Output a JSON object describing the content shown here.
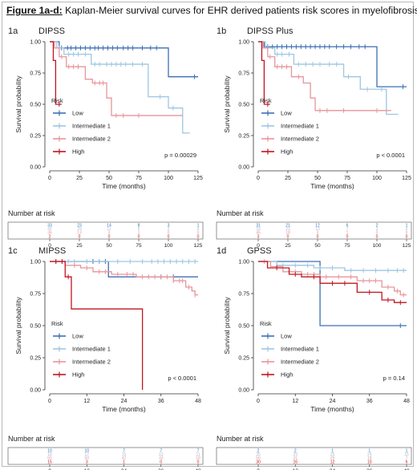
{
  "figure": {
    "label": "Figure 1a-d:",
    "title": "Kaplan-Meier survival curves for EHR derived patients risk scores in myelofibrosis"
  },
  "colors": {
    "low": "#3d6fb4",
    "int1": "#9ec6e2",
    "int2": "#e8959b",
    "high": "#c0161f",
    "ticks": "#444444"
  },
  "chart_data": [
    {
      "type": "line",
      "step": true,
      "panel_id": "1a",
      "title": "DIPSS",
      "xlabel": "Time (months)",
      "ylabel": "Survival probability",
      "xlim": [
        0,
        125
      ],
      "ylim": [
        0,
        1
      ],
      "xticks": [
        0,
        25,
        50,
        75,
        100,
        125
      ],
      "yticks": [
        0,
        0.25,
        0.5,
        0.75,
        1.0
      ],
      "ytick_labels": [
        "0.00",
        "0.25",
        "0.50",
        "0.75",
        "1.00"
      ],
      "legend_title": "Risk",
      "pvalue": "p = 0.00029",
      "risk_table_title": "Number at risk",
      "series": [
        {
          "name": "Low",
          "key": "low",
          "steps": [
            [
              0,
              1.0
            ],
            [
              8,
              0.95
            ],
            [
              100,
              0.72
            ],
            [
              125,
              0.72
            ]
          ],
          "censor": [
            10,
            15,
            18,
            22,
            26,
            30,
            34,
            38,
            41,
            45,
            49,
            53,
            57,
            62,
            66,
            70,
            78,
            85,
            90,
            122
          ]
        },
        {
          "name": "Intermediate 1",
          "key": "int1",
          "steps": [
            [
              0,
              1.0
            ],
            [
              6,
              0.95
            ],
            [
              12,
              0.9
            ],
            [
              35,
              0.82
            ],
            [
              83,
              0.56
            ],
            [
              100,
              0.47
            ],
            [
              112,
              0.27
            ],
            [
              118,
              0.27
            ]
          ],
          "censor": [
            8,
            16,
            20,
            24,
            30,
            38,
            42,
            48,
            52,
            56,
            60,
            64,
            70,
            78,
            93,
            104
          ]
        },
        {
          "name": "Intermediate 2",
          "key": "int2",
          "steps": [
            [
              0,
              1.0
            ],
            [
              4,
              0.95
            ],
            [
              8,
              0.88
            ],
            [
              14,
              0.8
            ],
            [
              30,
              0.7
            ],
            [
              36,
              0.67
            ],
            [
              48,
              0.55
            ],
            [
              52,
              0.41
            ],
            [
              112,
              0.41
            ]
          ],
          "censor": [
            10,
            16,
            20,
            24,
            38,
            42,
            45,
            56,
            62,
            75
          ]
        },
        {
          "name": "High",
          "key": "high",
          "steps": [
            [
              0,
              1.0
            ],
            [
              3,
              0.85
            ],
            [
              5,
              0.5
            ],
            [
              10,
              0.5
            ]
          ],
          "censor": [
            8
          ]
        }
      ],
      "risk_table": {
        "times": [
          0,
          25,
          50,
          75,
          100,
          125
        ],
        "rows": [
          {
            "key": "low",
            "values": [
              "33",
              "23",
              "14",
              "8",
              "3",
              "1"
            ]
          },
          {
            "key": "int1",
            "values": [
              "42",
              "29",
              "11",
              "6",
              "2",
              "0"
            ]
          },
          {
            "key": "int2",
            "values": [
              "36",
              "13",
              "3",
              "1",
              "0",
              "0"
            ]
          },
          {
            "key": "high",
            "values": [
              "2",
              "0",
              "0",
              "0",
              "0",
              "0"
            ]
          }
        ]
      }
    },
    {
      "type": "line",
      "step": true,
      "panel_id": "1b",
      "title": "DIPSS Plus",
      "xlabel": "Time (months)",
      "ylabel": "Survival probability",
      "xlim": [
        0,
        125
      ],
      "ylim": [
        0,
        1
      ],
      "xticks": [
        0,
        25,
        50,
        75,
        100,
        125
      ],
      "yticks": [
        0,
        0.25,
        0.5,
        0.75,
        1.0
      ],
      "ytick_labels": [
        "0.00",
        "0.25",
        "0.50",
        "0.75",
        "1.00"
      ],
      "legend_title": "Risk",
      "pvalue": "p < 0.0001",
      "risk_table_title": "Number at risk",
      "series": [
        {
          "name": "Low",
          "key": "low",
          "steps": [
            [
              0,
              1.0
            ],
            [
              5,
              0.96
            ],
            [
              100,
              0.64
            ],
            [
              125,
              0.64
            ]
          ],
          "censor": [
            8,
            12,
            16,
            20,
            24,
            28,
            32,
            36,
            40,
            44,
            48,
            52,
            56,
            60,
            66,
            72,
            78,
            85,
            90,
            122
          ]
        },
        {
          "name": "Intermediate 1",
          "key": "int1",
          "steps": [
            [
              0,
              1.0
            ],
            [
              6,
              0.95
            ],
            [
              14,
              0.9
            ],
            [
              30,
              0.82
            ],
            [
              72,
              0.72
            ],
            [
              86,
              0.62
            ],
            [
              108,
              0.42
            ],
            [
              118,
              0.42
            ]
          ],
          "censor": [
            8,
            16,
            20,
            26,
            34,
            40,
            46,
            52,
            60,
            66,
            76,
            92,
            104
          ]
        },
        {
          "name": "Intermediate 2",
          "key": "int2",
          "steps": [
            [
              0,
              1.0
            ],
            [
              4,
              0.95
            ],
            [
              8,
              0.88
            ],
            [
              14,
              0.8
            ],
            [
              28,
              0.72
            ],
            [
              38,
              0.67
            ],
            [
              44,
              0.55
            ],
            [
              48,
              0.45
            ],
            [
              112,
              0.45
            ]
          ],
          "censor": [
            10,
            16,
            20,
            24,
            34,
            52,
            58,
            72,
            100
          ]
        },
        {
          "name": "High",
          "key": "high",
          "steps": [
            [
              0,
              1.0
            ],
            [
              3,
              0.85
            ],
            [
              5,
              0.5
            ],
            [
              10,
              0.5
            ]
          ],
          "censor": [
            8
          ]
        }
      ],
      "risk_table": {
        "times": [
          0,
          25,
          50,
          75,
          100,
          125
        ],
        "rows": [
          {
            "key": "low",
            "values": [
              "31",
              "21",
              "12",
              "6",
              "2",
              "1"
            ]
          },
          {
            "key": "int1",
            "values": [
              "33",
              "23",
              "13",
              "7",
              "3",
              "0"
            ]
          },
          {
            "key": "int2",
            "values": [
              "45",
              "18",
              "3",
              "1",
              "0",
              "0"
            ]
          },
          {
            "key": "high",
            "values": [
              "3",
              "0",
              "0",
              "0",
              "0",
              "0"
            ]
          }
        ]
      }
    },
    {
      "type": "line",
      "step": true,
      "panel_id": "1c",
      "title": "MIPSS",
      "xlabel": "Time (months)",
      "ylabel": "Survival probability",
      "xlim": [
        0,
        48
      ],
      "ylim": [
        0,
        1
      ],
      "xticks": [
        0,
        12,
        24,
        36,
        48
      ],
      "yticks": [
        0,
        0.25,
        0.5,
        0.75,
        1.0
      ],
      "ytick_labels": [
        "0.00",
        "0.25",
        "0.50",
        "0.75",
        "1.00"
      ],
      "legend_title": "Risk",
      "pvalue": "p < 0.0001",
      "risk_table_title": "Number at risk",
      "series": [
        {
          "name": "Low",
          "key": "low",
          "steps": [
            [
              0,
              1.0
            ],
            [
              19,
              0.88
            ],
            [
              48,
              0.88
            ]
          ],
          "censor": [
            14,
            16,
            18,
            36,
            40
          ]
        },
        {
          "name": "Intermediate 1",
          "key": "int1",
          "steps": [
            [
              0,
              1.0
            ],
            [
              48,
              1.0
            ]
          ],
          "censor": [
            2,
            4,
            6,
            8,
            12,
            16,
            22,
            26,
            30,
            33,
            35,
            37,
            39,
            41,
            43,
            45,
            47
          ]
        },
        {
          "name": "Intermediate 2",
          "key": "int2",
          "steps": [
            [
              0,
              1.0
            ],
            [
              5,
              0.97
            ],
            [
              10,
              0.95
            ],
            [
              14,
              0.92
            ],
            [
              20,
              0.9
            ],
            [
              28,
              0.88
            ],
            [
              40,
              0.85
            ],
            [
              44,
              0.8
            ],
            [
              46,
              0.77
            ],
            [
              47,
              0.74
            ],
            [
              48,
              0.74
            ]
          ],
          "censor": [
            2,
            4,
            8,
            12,
            16,
            18,
            22,
            25,
            27,
            30,
            32,
            34,
            36,
            38,
            40,
            42,
            43,
            45,
            47
          ]
        },
        {
          "name": "High",
          "key": "high",
          "steps": [
            [
              0,
              1.0
            ],
            [
              5,
              0.88
            ],
            [
              7,
              0.63
            ],
            [
              30,
              0.63
            ],
            [
              30,
              0.0
            ]
          ],
          "censor": [
            2,
            4,
            6
          ]
        }
      ],
      "risk_table": {
        "times": [
          0,
          12,
          24,
          36,
          48
        ],
        "rows": [
          {
            "key": "low",
            "values": [
              "10",
              "10",
              "7",
              "7",
              "7"
            ]
          },
          {
            "key": "int1",
            "values": [
              "18",
              "17",
              "15",
              "13",
              "11"
            ]
          },
          {
            "key": "int2",
            "values": [
              "60",
              "50",
              "42",
              "33",
              "18"
            ]
          },
          {
            "key": "high",
            "values": [
              "15",
              "3",
              "1",
              "0",
              "0"
            ]
          }
        ]
      }
    },
    {
      "type": "line",
      "step": true,
      "panel_id": "1d",
      "title": "GPSS",
      "xlabel": "Time (months)",
      "ylabel": "Survival probability",
      "xlim": [
        0,
        48
      ],
      "ylim": [
        0,
        1
      ],
      "xticks": [
        0,
        12,
        24,
        36,
        48
      ],
      "yticks": [
        0,
        0.25,
        0.5,
        0.75,
        1.0
      ],
      "ytick_labels": [
        "0.00",
        "0.25",
        "0.50",
        "0.75",
        "1.00"
      ],
      "legend_title": "Risk",
      "pvalue": "p = 0.14",
      "risk_table_title": "Number at risk",
      "series": [
        {
          "name": "Low",
          "key": "low",
          "steps": [
            [
              0,
              1.0
            ],
            [
              20,
              0.5
            ],
            [
              48,
              0.5
            ]
          ],
          "censor": [
            46
          ]
        },
        {
          "name": "Intermediate 1",
          "key": "int1",
          "steps": [
            [
              0,
              1.0
            ],
            [
              6,
              0.97
            ],
            [
              18,
              0.95
            ],
            [
              28,
              0.93
            ],
            [
              48,
              0.93
            ]
          ],
          "censor": [
            8,
            12,
            16,
            20,
            24,
            30,
            34,
            38,
            42,
            45,
            47
          ]
        },
        {
          "name": "Intermediate 2",
          "key": "int2",
          "steps": [
            [
              0,
              1.0
            ],
            [
              4,
              0.96
            ],
            [
              8,
              0.92
            ],
            [
              14,
              0.9
            ],
            [
              20,
              0.88
            ],
            [
              32,
              0.85
            ],
            [
              40,
              0.8
            ],
            [
              44,
              0.77
            ],
            [
              46,
              0.74
            ],
            [
              48,
              0.74
            ]
          ],
          "censor": [
            2,
            6,
            10,
            12,
            16,
            18,
            22,
            26,
            30,
            34,
            36,
            38,
            42,
            45,
            47
          ]
        },
        {
          "name": "High",
          "key": "high",
          "steps": [
            [
              0,
              1.0
            ],
            [
              3,
              0.95
            ],
            [
              10,
              0.9
            ],
            [
              14,
              0.88
            ],
            [
              20,
              0.83
            ],
            [
              32,
              0.76
            ],
            [
              40,
              0.7
            ],
            [
              44,
              0.68
            ],
            [
              48,
              0.68
            ]
          ],
          "censor": [
            6,
            12,
            18,
            24,
            28,
            36,
            42,
            46
          ]
        }
      ],
      "risk_table": {
        "times": [
          0,
          12,
          24,
          36,
          48
        ],
        "rows": [
          {
            "key": "low",
            "values": [
              "2",
              "2",
              "1",
              "1",
              "1"
            ]
          },
          {
            "key": "int1",
            "values": [
              "35",
              "29",
              "26",
              "24",
              "15"
            ]
          },
          {
            "key": "int2",
            "values": [
              "56",
              "31",
              "25",
              "18",
              "7"
            ]
          },
          {
            "key": "high",
            "values": [
              "30",
              "16",
              "12",
              "10",
              "6"
            ]
          }
        ]
      }
    }
  ]
}
